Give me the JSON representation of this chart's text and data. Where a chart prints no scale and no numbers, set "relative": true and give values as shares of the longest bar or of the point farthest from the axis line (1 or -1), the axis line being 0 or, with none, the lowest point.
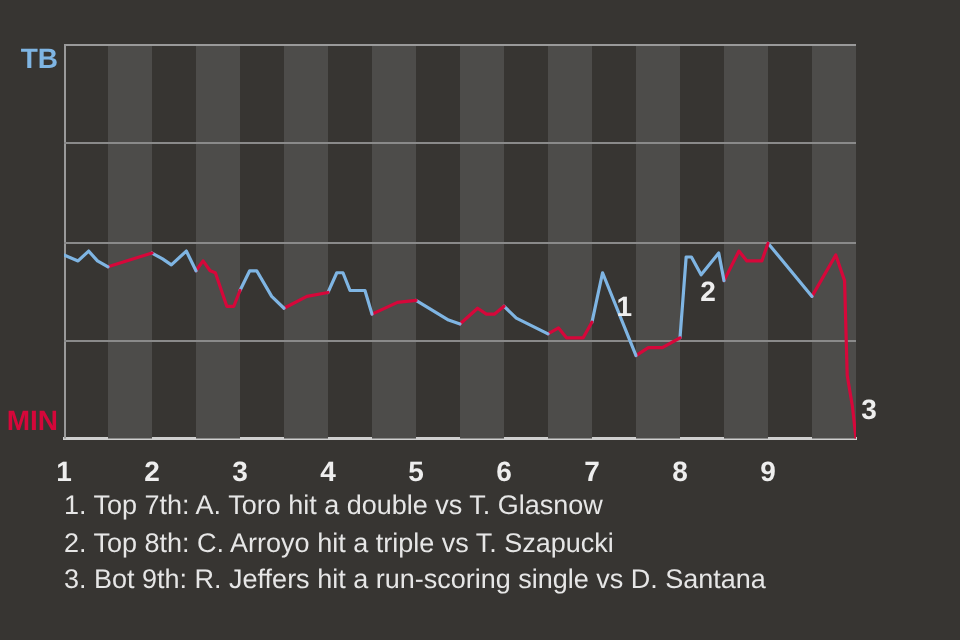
{
  "chart_data": {
    "type": "line",
    "relative": true,
    "xlim": [
      1,
      10
    ],
    "xticks": [
      1,
      2,
      3,
      4,
      5,
      6,
      7,
      8,
      9
    ],
    "series": [
      {
        "color": "#7fb5e3",
        "x": [
          1,
          1.16,
          1.28,
          1.38,
          1.5
        ],
        "values": [
          -0.07,
          -0.1,
          -0.05,
          -0.1,
          -0.13
        ]
      },
      {
        "color": "#d6073a",
        "x": [
          1.5,
          2
        ],
        "values": [
          -0.13,
          -0.06
        ]
      },
      {
        "color": "#7fb5e3",
        "x": [
          2,
          2.12,
          2.22,
          2.39,
          2.5
        ],
        "values": [
          -0.06,
          -0.09,
          -0.12,
          -0.05,
          -0.15
        ]
      },
      {
        "color": "#d6073a",
        "x": [
          2.5,
          2.58,
          2.66,
          2.72,
          2.85,
          2.93,
          3
        ],
        "values": [
          -0.15,
          -0.1,
          -0.15,
          -0.16,
          -0.33,
          -0.33,
          -0.25
        ]
      },
      {
        "color": "#7fb5e3",
        "x": [
          3,
          3.11,
          3.19,
          3.36,
          3.5
        ],
        "values": [
          -0.25,
          -0.15,
          -0.15,
          -0.28,
          -0.34
        ]
      },
      {
        "color": "#d6073a",
        "x": [
          3.5,
          3.76,
          4
        ],
        "values": [
          -0.34,
          -0.28,
          -0.26
        ]
      },
      {
        "color": "#7fb5e3",
        "x": [
          4,
          4.1,
          4.17,
          4.25,
          4.42,
          4.5
        ],
        "values": [
          -0.26,
          -0.16,
          -0.16,
          -0.25,
          -0.25,
          -0.37
        ]
      },
      {
        "color": "#d6073a",
        "x": [
          4.5,
          4.79,
          5
        ],
        "values": [
          -0.37,
          -0.31,
          -0.3
        ]
      },
      {
        "color": "#7fb5e3",
        "x": [
          5,
          5.37,
          5.5
        ],
        "values": [
          -0.3,
          -0.4,
          -0.42
        ]
      },
      {
        "color": "#d6073a",
        "x": [
          5.5,
          5.7,
          5.8,
          5.89,
          6
        ],
        "values": [
          -0.42,
          -0.34,
          -0.37,
          -0.37,
          -0.33
        ]
      },
      {
        "color": "#7fb5e3",
        "x": [
          6,
          6.14,
          6.5
        ],
        "values": [
          -0.33,
          -0.39,
          -0.47
        ]
      },
      {
        "color": "#d6073a",
        "x": [
          6.5,
          6.62,
          6.71,
          6.9,
          7
        ],
        "values": [
          -0.47,
          -0.44,
          -0.49,
          -0.49,
          -0.41
        ]
      },
      {
        "color": "#7fb5e3",
        "x": [
          7,
          7.12,
          7.5
        ],
        "values": [
          -0.41,
          -0.16,
          -0.58
        ]
      },
      {
        "color": "#d6073a",
        "x": [
          7.5,
          7.64,
          7.8,
          8
        ],
        "values": [
          -0.58,
          -0.54,
          -0.54,
          -0.49
        ]
      },
      {
        "color": "#7fb5e3",
        "x": [
          8,
          8.07,
          8.13,
          8.24,
          8.44,
          8.5
        ],
        "values": [
          -0.49,
          -0.08,
          -0.08,
          -0.17,
          -0.06,
          -0.2
        ]
      },
      {
        "color": "#d6073a",
        "x": [
          8.5,
          8.67,
          8.76,
          8.93,
          9
        ],
        "values": [
          -0.2,
          -0.05,
          -0.1,
          -0.1,
          -0.01
        ]
      },
      {
        "color": "#7fb5e3",
        "x": [
          9,
          9.5
        ],
        "values": [
          -0.01,
          -0.28
        ]
      },
      {
        "color": "#d6073a",
        "x": [
          9.5,
          9.77,
          9.87,
          9.9,
          9.96,
          10
        ],
        "values": [
          -0.28,
          -0.07,
          -0.2,
          -0.68,
          -0.84,
          -1
        ]
      }
    ],
    "bands": [
      {
        "axis": "x",
        "from": 1.5,
        "to": 2,
        "color": "#4d4c4a"
      },
      {
        "axis": "x",
        "from": 2.5,
        "to": 3,
        "color": "#4d4c4a"
      },
      {
        "axis": "x",
        "from": 3.5,
        "to": 4,
        "color": "#4d4c4a"
      },
      {
        "axis": "x",
        "from": 4.5,
        "to": 5,
        "color": "#4d4c4a"
      },
      {
        "axis": "x",
        "from": 5.5,
        "to": 6,
        "color": "#4d4c4a"
      },
      {
        "axis": "x",
        "from": 6.5,
        "to": 7,
        "color": "#4d4c4a"
      },
      {
        "axis": "x",
        "from": 7.5,
        "to": 8,
        "color": "#4d4c4a"
      },
      {
        "axis": "x",
        "from": 8.5,
        "to": 9,
        "color": "#4d4c4a"
      },
      {
        "axis": "x",
        "from": 9.5,
        "to": 10,
        "color": "#4d4c4a"
      }
    ],
    "ref_lines": [
      {
        "axis": "y",
        "value": 0.5,
        "color": "#8a8a8a"
      },
      {
        "axis": "y",
        "value": 0,
        "color": "#8a8a8a"
      },
      {
        "axis": "y",
        "value": -0.5,
        "color": "#8a8a8a"
      }
    ],
    "annotations": [
      "TB",
      "MIN",
      {
        "text": "1",
        "x": 7.12,
        "y": -0.16
      },
      {
        "text": "2",
        "x": 8.07,
        "y": -0.08
      },
      {
        "text": "3",
        "x": 9.9,
        "y": -0.68
      },
      "1. Top 7th: A. Toro hit a double vs T. Glasnow",
      "2. Top 8th: C. Arroyo hit a triple vs T. Szapucki",
      "3. Bot 9th: R. Jeffers hit a run-scoring single vs D. Santana"
    ]
  }
}
